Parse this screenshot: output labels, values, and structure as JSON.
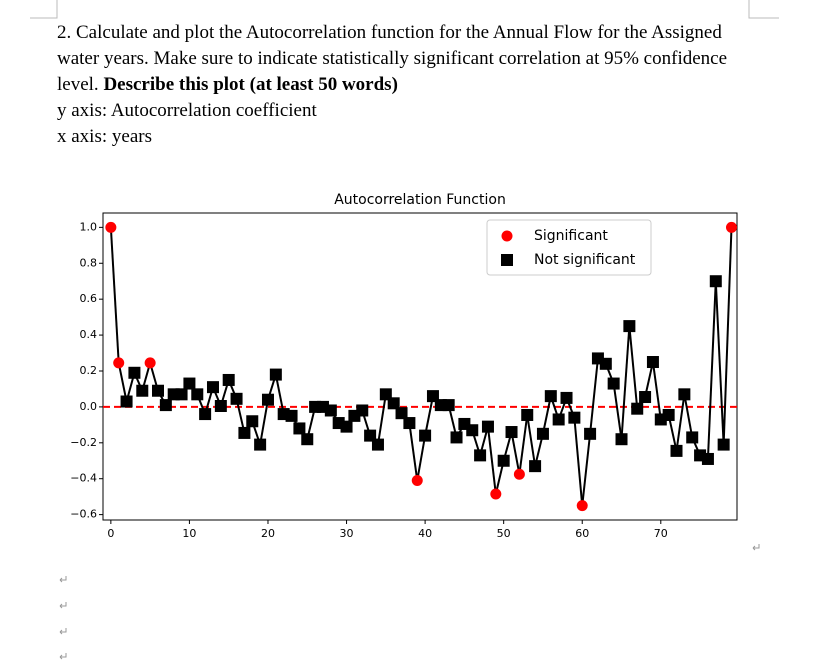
{
  "question": {
    "text": "2. Calculate and plot the Autocorrelation function for the Annual Flow for the Assigned water years. Make sure to indicate statistically significant correlation at 95% confidence level.",
    "bold": "Describe this plot (at least 50 words)"
  },
  "y_axis_note": "y axis: Autocorrelation coefficient",
  "x_axis_note": "x axis: years",
  "chart_data": {
    "type": "scatter",
    "title": "Autocorrelation Function",
    "x": [
      0,
      1,
      2,
      3,
      4,
      5,
      6,
      7,
      8,
      9,
      10,
      11,
      12,
      13,
      14,
      15,
      16,
      17,
      18,
      19,
      20,
      21,
      22,
      23,
      24,
      25,
      26,
      27,
      28,
      29,
      30,
      31,
      32,
      33,
      34,
      35,
      36,
      37,
      38,
      39,
      40,
      41,
      42,
      43,
      44,
      45,
      46,
      47,
      48,
      49,
      50,
      51,
      52,
      53,
      54,
      55,
      56,
      57,
      58,
      59,
      60,
      61,
      62,
      63,
      64,
      65,
      66,
      67,
      68,
      69,
      70,
      71,
      72,
      73,
      74,
      75,
      76,
      77,
      78,
      79
    ],
    "series": [
      {
        "name": "Significant",
        "color": "#ff0000",
        "marker": "circle",
        "values": [
          1.0,
          0.245,
          null,
          null,
          null,
          0.245,
          null,
          null,
          null,
          null,
          null,
          null,
          null,
          null,
          null,
          null,
          null,
          null,
          null,
          null,
          null,
          null,
          null,
          null,
          null,
          null,
          null,
          null,
          null,
          null,
          null,
          null,
          null,
          null,
          null,
          null,
          null,
          null,
          null,
          -0.41,
          null,
          null,
          null,
          null,
          null,
          null,
          null,
          null,
          null,
          -0.485,
          null,
          null,
          -0.375,
          null,
          null,
          null,
          null,
          null,
          null,
          null,
          -0.55,
          null,
          null,
          null,
          null,
          null,
          null,
          null,
          null,
          null,
          null,
          null,
          null,
          null,
          null,
          null,
          null,
          null,
          null,
          1.0
        ]
      },
      {
        "name": "Not significant",
        "color": "#000000",
        "marker": "square",
        "values": [
          null,
          null,
          0.03,
          0.19,
          0.09,
          null,
          0.09,
          0.01,
          0.07,
          0.07,
          0.13,
          0.07,
          -0.04,
          0.11,
          0.005,
          0.15,
          0.045,
          -0.145,
          -0.08,
          -0.21,
          0.04,
          0.18,
          -0.04,
          -0.05,
          -0.12,
          -0.18,
          0.0,
          0.0,
          -0.02,
          -0.09,
          -0.11,
          -0.05,
          -0.02,
          -0.16,
          -0.21,
          0.07,
          0.02,
          -0.035,
          -0.09,
          null,
          -0.16,
          0.06,
          0.01,
          0.01,
          -0.17,
          -0.095,
          -0.13,
          -0.27,
          -0.11,
          null,
          -0.3,
          -0.14,
          null,
          -0.045,
          -0.33,
          -0.15,
          0.06,
          -0.07,
          0.05,
          -0.06,
          null,
          -0.15,
          0.27,
          0.24,
          0.13,
          -0.18,
          0.45,
          -0.01,
          0.055,
          0.25,
          -0.07,
          -0.045,
          -0.245,
          0.07,
          -0.17,
          -0.27,
          -0.29,
          0.7,
          -0.21,
          null
        ]
      }
    ],
    "line_color": "#000000",
    "reference_line": {
      "value": 0,
      "color": "#ff0000",
      "style": "dashed"
    },
    "xlim": [
      -1,
      79.7
    ],
    "ylim": [
      -0.63,
      1.08
    ],
    "xticks": [
      0,
      10,
      20,
      30,
      40,
      50,
      60,
      70
    ],
    "yticks": [
      {
        "value": -0.6,
        "label": "−0.6"
      },
      {
        "value": -0.4,
        "label": "−0.4"
      },
      {
        "value": -0.2,
        "label": "−0.2"
      },
      {
        "value": 0,
        "label": "0.0"
      },
      0.2,
      0.4,
      0.6,
      0.8,
      {
        "value": 1,
        "label": "1.0"
      }
    ],
    "legend": "upper right"
  }
}
